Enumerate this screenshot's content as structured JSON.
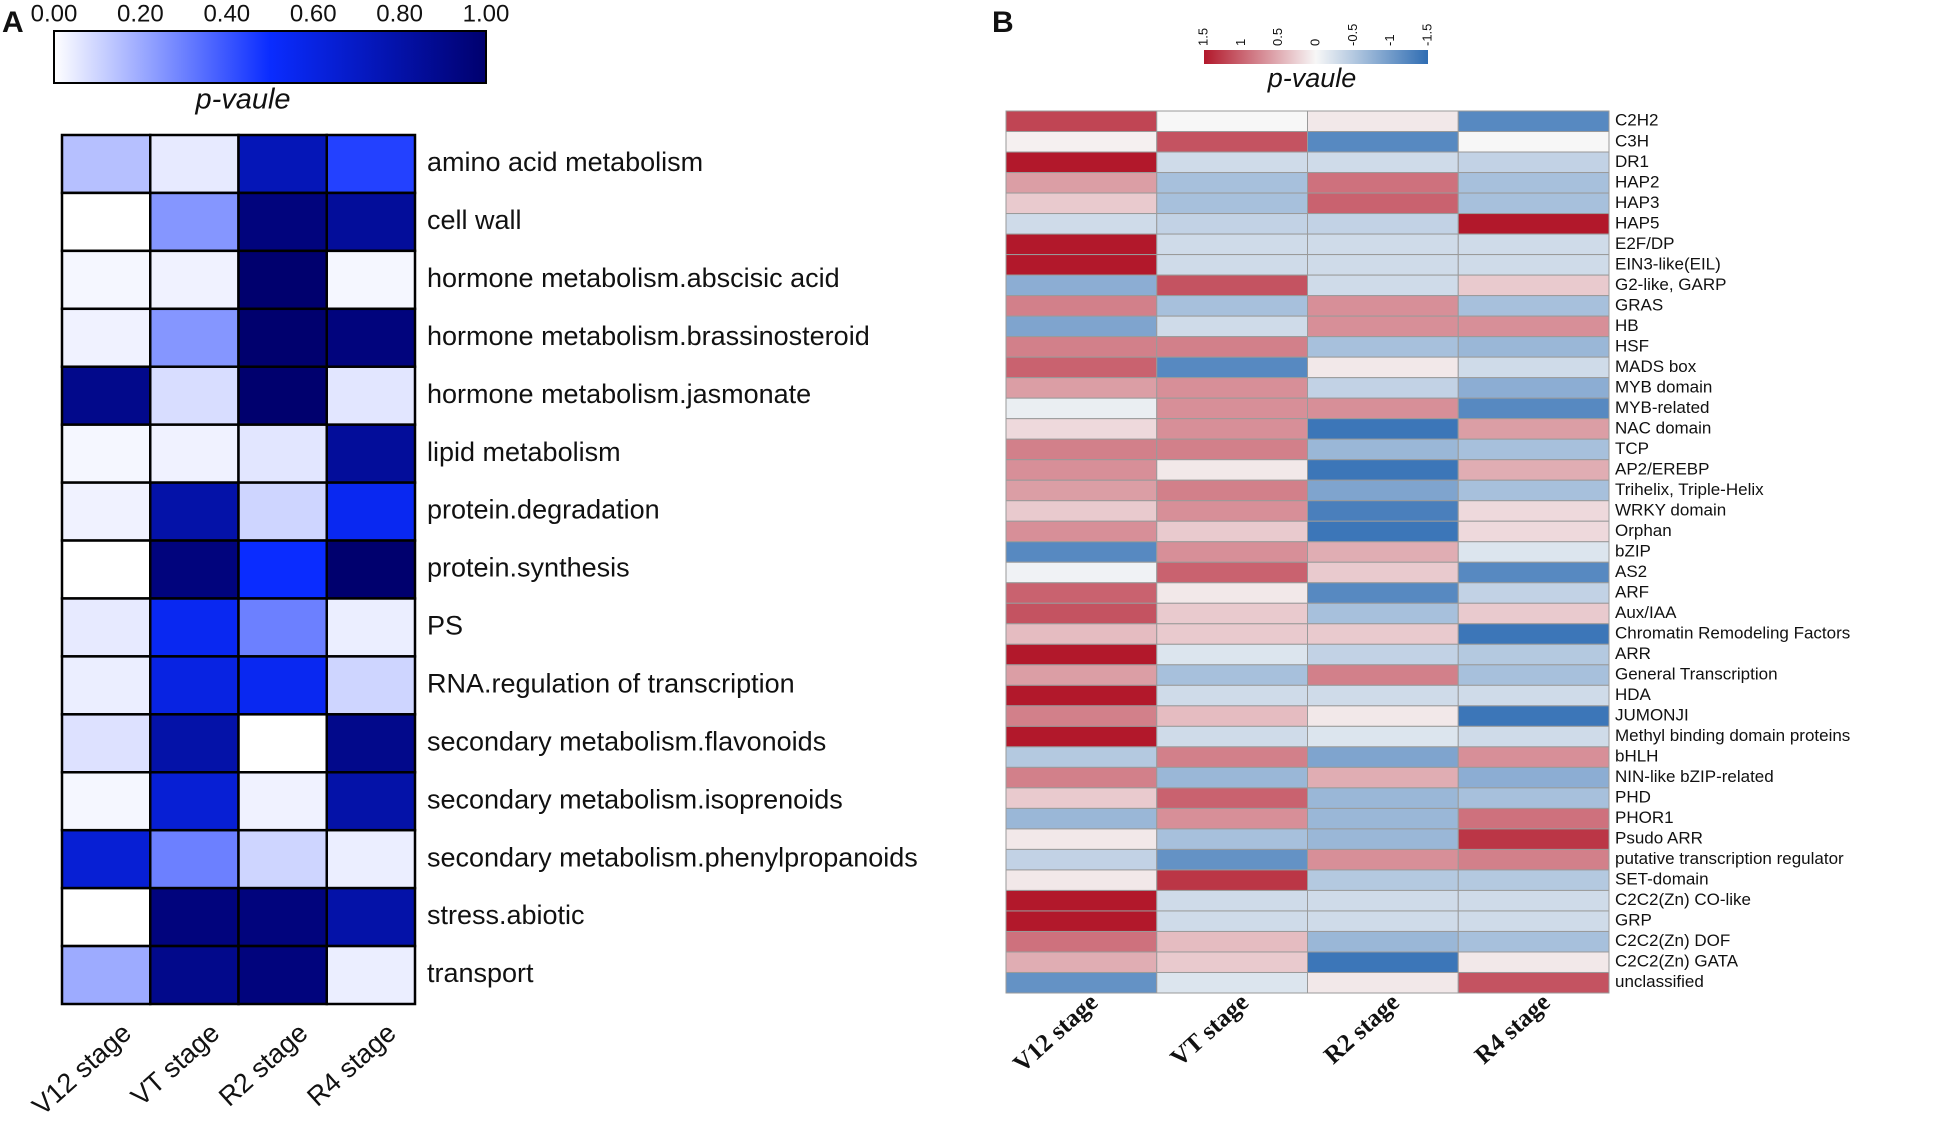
{
  "chart_data": [
    {
      "type": "heatmap",
      "panel_label": "A",
      "colorbar_title": "p-vaule",
      "columns": [
        "V12 stage",
        "VT stage",
        "R2 stage",
        "R4 stage"
      ],
      "rows": [
        "amino acid metabolism",
        "cell wall",
        "hormone metabolism.abscisic acid",
        "hormone metabolism.brassinosteroid",
        "hormone metabolism.jasmonate",
        "lipid metabolism",
        "protein.degradation",
        "protein.synthesis",
        "PS",
        "RNA.regulation of transcription",
        "secondary metabolism.flavonoids",
        "secondary metabolism.isoprenoids",
        "secondary metabolism.phenylpropanoids",
        "stress.abiotic",
        "transport"
      ],
      "values": [
        [
          0.15,
          0.05,
          0.75,
          0.45
        ],
        [
          0.0,
          0.25,
          0.95,
          0.85
        ],
        [
          0.02,
          0.03,
          1.0,
          0.02
        ],
        [
          0.03,
          0.25,
          1.0,
          0.95
        ],
        [
          0.9,
          0.08,
          1.0,
          0.06
        ],
        [
          0.02,
          0.03,
          0.06,
          0.85
        ],
        [
          0.03,
          0.8,
          0.1,
          0.55
        ],
        [
          0.0,
          0.95,
          0.5,
          1.0
        ],
        [
          0.05,
          0.55,
          0.3,
          0.04
        ],
        [
          0.04,
          0.6,
          0.55,
          0.1
        ],
        [
          0.07,
          0.8,
          0.0,
          0.9
        ],
        [
          0.02,
          0.65,
          0.03,
          0.8
        ],
        [
          0.65,
          0.3,
          0.1,
          0.04
        ],
        [
          0.0,
          0.95,
          0.95,
          0.8
        ],
        [
          0.2,
          0.9,
          0.95,
          0.04
        ]
      ],
      "clim": [
        0,
        1
      ],
      "colors": [
        "#ffffff",
        "#0a2cff",
        "#00006e"
      ],
      "colorbar_reversed": false,
      "cticks": [
        {
          "value": 0,
          "label": "0.00"
        },
        {
          "value": 0.2,
          "label": "0.20"
        },
        {
          "value": 0.4,
          "label": "0.40"
        },
        {
          "value": 0.6,
          "label": "0.60"
        },
        {
          "value": 0.8,
          "label": "0.80"
        },
        {
          "value": 1,
          "label": "1.00"
        }
      ]
    },
    {
      "type": "heatmap",
      "panel_label": "B",
      "colorbar_title": "p-vaule",
      "columns": [
        "V12 stage",
        "VT stage",
        "R2 stage",
        "R4 stage"
      ],
      "rows": [
        "C2H2",
        "C3H",
        "DR1",
        "HAP2",
        "HAP3",
        "HAP5",
        "E2F/DP",
        "EIN3-like(EIL)",
        "G2-like, GARP",
        "GRAS",
        "HB",
        "HSF",
        "MADS box",
        "MYB domain",
        "MYB-related",
        "NAC domain",
        "TCP",
        "AP2/EREBP",
        "Trihelix, Triple-Helix",
        "WRKY domain",
        "Orphan",
        "bZIP",
        "AS2",
        "ARF",
        "Aux/IAA",
        "Chromatin Remodeling Factors",
        "ARR",
        "General Transcription",
        "HDA",
        "JUMONJI",
        "Methyl binding domain proteins",
        "bHLH",
        "NIN-like bZIP-related",
        "PHD",
        "PHOR1",
        "Psudo ARR",
        "putative transcription regulator",
        "SET-domain",
        "C2C2(Zn) CO-like",
        "GRP",
        "C2C2(Zn) DOF",
        "C2C2(Zn) GATA",
        "unclassified"
      ],
      "values": [
        [
          1.2,
          0,
          0.1,
          -1.2
        ],
        [
          0.05,
          1.1,
          -1.2,
          0
        ],
        [
          1.5,
          -0.3,
          -0.3,
          -0.4
        ],
        [
          0.6,
          -0.6,
          0.9,
          -0.6
        ],
        [
          0.3,
          -0.6,
          1.0,
          -0.6
        ],
        [
          -0.3,
          -0.4,
          -0.4,
          1.5
        ],
        [
          1.5,
          -0.3,
          -0.3,
          -0.3
        ],
        [
          1.5,
          -0.3,
          -0.3,
          -0.3
        ],
        [
          -0.8,
          1.1,
          -0.3,
          0.3
        ],
        [
          0.8,
          -0.6,
          0.7,
          -0.6
        ],
        [
          -0.9,
          -0.3,
          0.7,
          0.7
        ],
        [
          0.8,
          0.8,
          -0.6,
          -0.7
        ],
        [
          1.0,
          -1.2,
          0.1,
          -0.3
        ],
        [
          0.6,
          0.7,
          -0.4,
          -0.8
        ],
        [
          -0.1,
          0.7,
          0.7,
          -1.2
        ],
        [
          0.2,
          0.7,
          -1.4,
          0.6
        ],
        [
          0.8,
          0.8,
          -0.7,
          -0.6
        ],
        [
          0.7,
          0.1,
          -1.4,
          0.5
        ],
        [
          0.6,
          0.8,
          -0.9,
          -0.6
        ],
        [
          0.3,
          0.7,
          -1.3,
          0.2
        ],
        [
          0.7,
          0.3,
          -1.4,
          0.2
        ],
        [
          -1.2,
          0.7,
          0.5,
          -0.2
        ],
        [
          -0.05,
          1.0,
          0.3,
          -1.2
        ],
        [
          1.0,
          0.1,
          -1.2,
          -0.4
        ],
        [
          1.1,
          0.3,
          -0.6,
          0.3
        ],
        [
          0.4,
          0.3,
          0.3,
          -1.4
        ],
        [
          1.5,
          -0.2,
          -0.4,
          -0.5
        ],
        [
          0.6,
          -0.6,
          0.8,
          -0.6
        ],
        [
          1.5,
          -0.3,
          -0.3,
          -0.3
        ],
        [
          0.8,
          0.4,
          0.1,
          -1.4
        ],
        [
          1.5,
          -0.3,
          -0.2,
          -0.3
        ],
        [
          -0.5,
          0.8,
          -0.9,
          0.7
        ],
        [
          0.8,
          -0.7,
          0.5,
          -0.8
        ],
        [
          0.3,
          1.0,
          -0.7,
          -0.6
        ],
        [
          -0.7,
          0.7,
          -0.7,
          0.9
        ],
        [
          0.1,
          -0.6,
          -0.7,
          1.3
        ],
        [
          -0.4,
          -1.1,
          0.7,
          0.8
        ],
        [
          0.1,
          1.3,
          -0.5,
          -0.5
        ],
        [
          1.5,
          -0.3,
          -0.3,
          -0.3
        ],
        [
          1.5,
          -0.3,
          -0.3,
          -0.3
        ],
        [
          0.9,
          0.4,
          -0.7,
          -0.6
        ],
        [
          0.5,
          0.3,
          -1.4,
          0.1
        ],
        [
          -1.1,
          -0.2,
          0.1,
          1.1
        ]
      ],
      "clim": [
        -1.5,
        1.5
      ],
      "colors": [
        "#2f6db3",
        "#f7f7f7",
        "#b2182b"
      ],
      "colorbar_reversed": true,
      "cticks": [
        1.5,
        1,
        0.5,
        0,
        -0.5,
        -1,
        -1.5
      ]
    }
  ]
}
